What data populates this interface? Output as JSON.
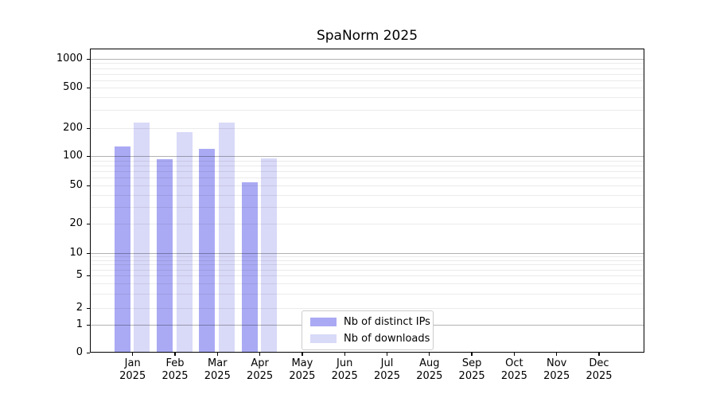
{
  "chart_data": {
    "type": "bar",
    "title": "SpaNorm 2025",
    "categories": [
      {
        "month": "Jan",
        "year": "2025"
      },
      {
        "month": "Feb",
        "year": "2025"
      },
      {
        "month": "Mar",
        "year": "2025"
      },
      {
        "month": "Apr",
        "year": "2025"
      },
      {
        "month": "May",
        "year": "2025"
      },
      {
        "month": "Jun",
        "year": "2025"
      },
      {
        "month": "Jul",
        "year": "2025"
      },
      {
        "month": "Aug",
        "year": "2025"
      },
      {
        "month": "Sep",
        "year": "2025"
      },
      {
        "month": "Oct",
        "year": "2025"
      },
      {
        "month": "Nov",
        "year": "2025"
      },
      {
        "month": "Dec",
        "year": "2025"
      }
    ],
    "series": [
      {
        "name": "Nb of distinct IPs",
        "color": "#aaaaf4",
        "values": [
          128,
          92,
          120,
          54,
          null,
          null,
          null,
          null,
          null,
          null,
          null,
          null
        ]
      },
      {
        "name": "Nb of downloads",
        "color": "#d9d9f8",
        "values": [
          225,
          180,
          227,
          94,
          null,
          null,
          null,
          null,
          null,
          null,
          null,
          null
        ]
      }
    ],
    "yscale": "log-with-zero",
    "ytick_values": [
      0,
      1,
      2,
      5,
      10,
      20,
      50,
      100,
      200,
      500,
      1000
    ],
    "ytick_labels": [
      "0",
      "1",
      "2",
      "5",
      "10",
      "20",
      "50",
      "100",
      "200",
      "500",
      "1000"
    ],
    "ylim": [
      0,
      1200
    ],
    "xlabel": "",
    "ylabel": "",
    "grid": true,
    "legend_position": "lower center"
  }
}
